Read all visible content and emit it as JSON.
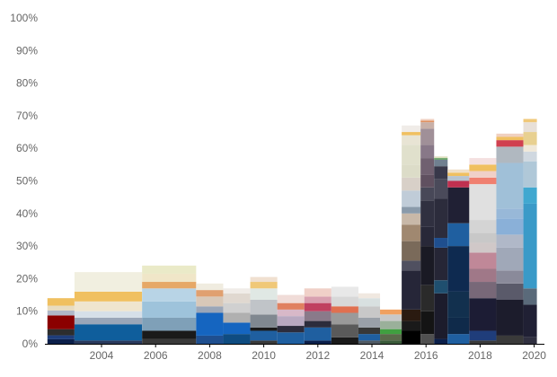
{
  "chart_data": {
    "type": "bar",
    "stacked": true,
    "variable_width": true,
    "title": "",
    "xlabel": "",
    "ylabel": "",
    "ylim": [
      0,
      100
    ],
    "y_ticks": [
      "0%",
      "10%",
      "20%",
      "30%",
      "40%",
      "50%",
      "60%",
      "70%",
      "80%",
      "90%",
      "100%"
    ],
    "x_ticks": [
      "2004",
      "2006",
      "2008",
      "2010",
      "2012",
      "2014",
      "2016",
      "2018",
      "2020"
    ],
    "grid": false,
    "legend": "none",
    "bars": [
      {
        "start": 2002.0,
        "end": 2003.0,
        "segments": [
          {
            "value": 1.4,
            "color": "#0b1f4a"
          },
          {
            "value": 1.2,
            "color": "#1f3d7a"
          },
          {
            "value": 1.9,
            "color": "#2d2d2d"
          },
          {
            "value": 4.2,
            "color": "#8b0000"
          },
          {
            "value": 1.5,
            "color": "#b0b8c8"
          },
          {
            "value": 1.5,
            "color": "#e8dcc0"
          },
          {
            "value": 2.3,
            "color": "#f0c060"
          }
        ]
      },
      {
        "start": 2003.0,
        "end": 2005.5,
        "segments": [
          {
            "value": 1.0,
            "color": "#2a3a5c"
          },
          {
            "value": 5.0,
            "color": "#0f5e9c"
          },
          {
            "value": 2.0,
            "color": "#9aa6b8"
          },
          {
            "value": 2.0,
            "color": "#d6dfe8"
          },
          {
            "value": 3.0,
            "color": "#efe5cf"
          },
          {
            "value": 3.0,
            "color": "#f0c060"
          },
          {
            "value": 6.0,
            "color": "#f1efe0"
          }
        ]
      },
      {
        "start": 2005.5,
        "end": 2007.5,
        "segments": [
          {
            "value": 1.5,
            "color": "#3a3a3a"
          },
          {
            "value": 2.5,
            "color": "#1a1a1a"
          },
          {
            "value": 4.0,
            "color": "#7fa0b8"
          },
          {
            "value": 5.0,
            "color": "#9ec3db"
          },
          {
            "value": 4.0,
            "color": "#b8d4e6"
          },
          {
            "value": 2.0,
            "color": "#e6a867"
          },
          {
            "value": 2.5,
            "color": "#f0e6c8"
          },
          {
            "value": 2.5,
            "color": "#eaeac8"
          }
        ]
      },
      {
        "start": 2007.5,
        "end": 2008.5,
        "segments": [
          {
            "value": 2.5,
            "color": "#1f4f8f"
          },
          {
            "value": 7.0,
            "color": "#1565c0"
          },
          {
            "value": 2.0,
            "color": "#9aa6b8"
          },
          {
            "value": 3.0,
            "color": "#d8c8b8"
          },
          {
            "value": 2.0,
            "color": "#e0a070"
          },
          {
            "value": 2.0,
            "color": "#f0ece0"
          }
        ]
      },
      {
        "start": 2008.5,
        "end": 2009.5,
        "segments": [
          {
            "value": 3.0,
            "color": "#0f4c81"
          },
          {
            "value": 3.5,
            "color": "#1565c0"
          },
          {
            "value": 3.0,
            "color": "#b0b0b0"
          },
          {
            "value": 3.0,
            "color": "#d0d0d0"
          },
          {
            "value": 3.0,
            "color": "#e0d8d0"
          },
          {
            "value": 1.5,
            "color": "#f0ece8"
          }
        ]
      },
      {
        "start": 2009.5,
        "end": 2010.5,
        "segments": [
          {
            "value": 1.0,
            "color": "#3a3a3a"
          },
          {
            "value": 3.0,
            "color": "#1f5fa0"
          },
          {
            "value": 1.0,
            "color": "#1a1a1a"
          },
          {
            "value": 4.0,
            "color": "#808890"
          },
          {
            "value": 4.5,
            "color": "#c0c4c8"
          },
          {
            "value": 3.5,
            "color": "#e0e8e4"
          },
          {
            "value": 2.0,
            "color": "#f0c878"
          },
          {
            "value": 1.5,
            "color": "#f0e0d0"
          }
        ]
      },
      {
        "start": 2010.5,
        "end": 2011.5,
        "segments": [
          {
            "value": 3.5,
            "color": "#1f5fa0"
          },
          {
            "value": 2.0,
            "color": "#2c2c3c"
          },
          {
            "value": 3.0,
            "color": "#b8a8c0"
          },
          {
            "value": 2.0,
            "color": "#d8b8c8"
          },
          {
            "value": 2.0,
            "color": "#e08060"
          },
          {
            "value": 2.5,
            "color": "#f0dcd8"
          }
        ]
      },
      {
        "start": 2011.5,
        "end": 2012.5,
        "segments": [
          {
            "value": 1.0,
            "color": "#0b1f4a"
          },
          {
            "value": 4.0,
            "color": "#1f5fa0"
          },
          {
            "value": 2.0,
            "color": "#2c2c3c"
          },
          {
            "value": 3.0,
            "color": "#8a7a8a"
          },
          {
            "value": 2.5,
            "color": "#c04060"
          },
          {
            "value": 2.0,
            "color": "#d8a0b0"
          },
          {
            "value": 2.5,
            "color": "#f0d0c8"
          }
        ]
      },
      {
        "start": 2012.5,
        "end": 2013.5,
        "segments": [
          {
            "value": 2.0,
            "color": "#1a1a1a"
          },
          {
            "value": 4.0,
            "color": "#5a5a5a"
          },
          {
            "value": 3.5,
            "color": "#9a9a9a"
          },
          {
            "value": 2.0,
            "color": "#e07050"
          },
          {
            "value": 3.0,
            "color": "#d8d8d8"
          },
          {
            "value": 3.0,
            "color": "#e8e8e8"
          }
        ]
      },
      {
        "start": 2013.5,
        "end": 2014.3,
        "segments": [
          {
            "value": 1.0,
            "color": "#505a64"
          },
          {
            "value": 2.0,
            "color": "#1f5fa0"
          },
          {
            "value": 2.0,
            "color": "#383838"
          },
          {
            "value": 3.0,
            "color": "#9aa0a8"
          },
          {
            "value": 3.5,
            "color": "#c8c8c8"
          },
          {
            "value": 2.5,
            "color": "#d8e0e0"
          },
          {
            "value": 1.5,
            "color": "#f0e8e0"
          }
        ]
      },
      {
        "start": 2014.3,
        "end": 2015.1,
        "segments": [
          {
            "value": 1.0,
            "color": "#3a5a3a"
          },
          {
            "value": 2.0,
            "color": "#5a6a4a"
          },
          {
            "value": 1.5,
            "color": "#40a040"
          },
          {
            "value": 2.5,
            "color": "#9ab09a"
          },
          {
            "value": 2.0,
            "color": "#c8c8c8"
          },
          {
            "value": 1.5,
            "color": "#f0a060"
          }
        ]
      },
      {
        "start": 2015.1,
        "end": 2015.8,
        "segments": [
          {
            "value": 4.0,
            "color": "#000000"
          },
          {
            "value": 3.0,
            "color": "#1a1a1a"
          },
          {
            "value": 3.5,
            "color": "#2a1a10"
          },
          {
            "value": 12.0,
            "color": "#262638"
          },
          {
            "value": 3.0,
            "color": "#505060"
          },
          {
            "value": 6.0,
            "color": "#7a6a5a"
          },
          {
            "value": 5.0,
            "color": "#a08870"
          },
          {
            "value": 3.5,
            "color": "#c8b8a8"
          },
          {
            "value": 2.0,
            "color": "#8a9aaa"
          },
          {
            "value": 5.0,
            "color": "#c0ccd8"
          },
          {
            "value": 4.0,
            "color": "#d8d0c8"
          },
          {
            "value": 4.0,
            "color": "#dcdcc8"
          },
          {
            "value": 6.0,
            "color": "#e0e0cc"
          },
          {
            "value": 3.0,
            "color": "#e8e4d4"
          },
          {
            "value": 1.0,
            "color": "#f0c060"
          },
          {
            "value": 2.0,
            "color": "#f0ece8"
          }
        ]
      },
      {
        "start": 2015.8,
        "end": 2016.3,
        "segments": [
          {
            "value": 3.0,
            "color": "#505050"
          },
          {
            "value": 7.0,
            "color": "#141414"
          },
          {
            "value": 8.0,
            "color": "#2a2a2a"
          },
          {
            "value": 12.0,
            "color": "#1a1a24"
          },
          {
            "value": 6.0,
            "color": "#282838"
          },
          {
            "value": 8.0,
            "color": "#303040"
          },
          {
            "value": 4.0,
            "color": "#484858"
          },
          {
            "value": 4.0,
            "color": "#605060"
          },
          {
            "value": 5.0,
            "color": "#706070"
          },
          {
            "value": 4.0,
            "color": "#887888"
          },
          {
            "value": 5.0,
            "color": "#a09098"
          },
          {
            "value": 2.0,
            "color": "#c8b0a8"
          },
          {
            "value": 0.5,
            "color": "#e09060"
          },
          {
            "value": 0.5,
            "color": "#f0d0c0"
          }
        ]
      },
      {
        "start": 2016.3,
        "end": 2016.8,
        "segments": [
          {
            "value": 1.5,
            "color": "#0b1f4a"
          },
          {
            "value": 14.0,
            "color": "#1c1c2c"
          },
          {
            "value": 4.0,
            "color": "#1f4f6f"
          },
          {
            "value": 10.0,
            "color": "#262636"
          },
          {
            "value": 3.0,
            "color": "#1f4f8f"
          },
          {
            "value": 12.0,
            "color": "#2c2c3c"
          },
          {
            "value": 6.0,
            "color": "#4a4a5a"
          },
          {
            "value": 4.0,
            "color": "#38384a"
          },
          {
            "value": 2.0,
            "color": "#708090"
          },
          {
            "value": 0.5,
            "color": "#60a060"
          },
          {
            "value": 0.5,
            "color": "#e0e0c0"
          }
        ]
      },
      {
        "start": 2016.8,
        "end": 2017.6,
        "segments": [
          {
            "value": 3.0,
            "color": "#1f5fa0"
          },
          {
            "value": 5.0,
            "color": "#0f2a4a"
          },
          {
            "value": 8.0,
            "color": "#12304e"
          },
          {
            "value": 14.0,
            "color": "#0e2a50"
          },
          {
            "value": 7.0,
            "color": "#1f5fa0"
          },
          {
            "value": 11.0,
            "color": "#202034"
          },
          {
            "value": 2.0,
            "color": "#c03050"
          },
          {
            "value": 1.5,
            "color": "#b8c4d0"
          },
          {
            "value": 1.0,
            "color": "#f0c060"
          },
          {
            "value": 1.0,
            "color": "#f0e0c8"
          }
        ]
      },
      {
        "start": 2017.6,
        "end": 2018.6,
        "segments": [
          {
            "value": 1.0,
            "color": "#3a3a3a"
          },
          {
            "value": 3.0,
            "color": "#1f3d7a"
          },
          {
            "value": 10.0,
            "color": "#1c1c34"
          },
          {
            "value": 5.0,
            "color": "#786878"
          },
          {
            "value": 4.0,
            "color": "#a07888"
          },
          {
            "value": 5.0,
            "color": "#c08898"
          },
          {
            "value": 3.0,
            "color": "#d0c8c8"
          },
          {
            "value": 3.0,
            "color": "#c8c8c8"
          },
          {
            "value": 4.0,
            "color": "#d4d4d4"
          },
          {
            "value": 11.0,
            "color": "#e0e0e0"
          },
          {
            "value": 2.0,
            "color": "#f08070"
          },
          {
            "value": 2.0,
            "color": "#f0d0c8"
          },
          {
            "value": 2.0,
            "color": "#f0c060"
          },
          {
            "value": 2.0,
            "color": "#f4e0e0"
          }
        ]
      },
      {
        "start": 2018.6,
        "end": 2019.6,
        "segments": [
          {
            "value": 2.5,
            "color": "#3a3a3a"
          },
          {
            "value": 11.0,
            "color": "#1c1c2c"
          },
          {
            "value": 5.0,
            "color": "#5a5a6a"
          },
          {
            "value": 4.0,
            "color": "#8a8a9a"
          },
          {
            "value": 7.0,
            "color": "#a0a8b8"
          },
          {
            "value": 4.0,
            "color": "#b0b8c8"
          },
          {
            "value": 5.0,
            "color": "#8ab0d8"
          },
          {
            "value": 3.0,
            "color": "#98b8d8"
          },
          {
            "value": 14.0,
            "color": "#a0c0d8"
          },
          {
            "value": 5.0,
            "color": "#b0b8c0"
          },
          {
            "value": 2.0,
            "color": "#d04050"
          },
          {
            "value": 1.0,
            "color": "#f0c060"
          },
          {
            "value": 1.0,
            "color": "#f0d0c0"
          }
        ]
      },
      {
        "start": 2019.6,
        "end": 2020.1,
        "segments": [
          {
            "value": 2.0,
            "color": "#303040"
          },
          {
            "value": 10.0,
            "color": "#202034"
          },
          {
            "value": 5.0,
            "color": "#5a6a7a"
          },
          {
            "value": 26.0,
            "color": "#3a9ac8"
          },
          {
            "value": 5.0,
            "color": "#40a8d0"
          },
          {
            "value": 8.0,
            "color": "#b0c8d8"
          },
          {
            "value": 3.0,
            "color": "#d0d8e0"
          },
          {
            "value": 2.0,
            "color": "#f0e8d8"
          },
          {
            "value": 4.0,
            "color": "#e8d090"
          },
          {
            "value": 3.0,
            "color": "#e8e0d8"
          },
          {
            "value": 1.0,
            "color": "#f0c878"
          }
        ]
      }
    ]
  }
}
